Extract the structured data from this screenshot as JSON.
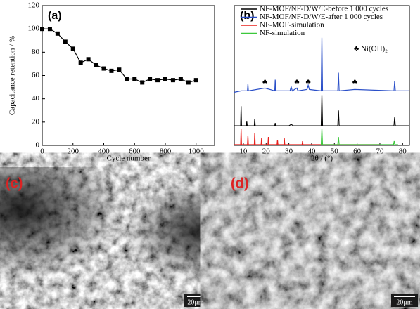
{
  "chart_data": [
    {
      "type": "line",
      "panel_label": "(a)",
      "x_label": "Cycle number",
      "y_label": "Capacitance retention / %",
      "marker": "square",
      "color": "#000000",
      "x": [
        0,
        50,
        100,
        150,
        200,
        250,
        300,
        350,
        400,
        450,
        500,
        550,
        600,
        650,
        700,
        750,
        800,
        850,
        900,
        950,
        1000
      ],
      "series": [
        {
          "color": "#000000",
          "values": [
            100,
            100,
            96,
            89,
            83,
            71,
            74,
            69,
            66,
            64,
            65,
            57,
            57,
            54,
            57,
            56,
            57,
            56,
            57,
            54,
            56
          ]
        }
      ],
      "xlim": [
        0,
        1120
      ],
      "xticks": [
        0,
        200,
        400,
        600,
        800,
        1000
      ],
      "ylim": [
        0,
        120
      ],
      "yticks": [
        0,
        20,
        40,
        60,
        80,
        100,
        120
      ]
    },
    {
      "type": "line",
      "panel_label": "(b)",
      "x_label": "2θ / (°)",
      "xlim": [
        6,
        83
      ],
      "xticks": [
        10,
        20,
        30,
        40,
        50,
        60,
        70,
        80
      ],
      "ylim": [
        0,
        100
      ],
      "annotation": "♣ Ni(OH)₂",
      "marker_symbol": "♣",
      "marker_x": [
        19.5,
        33.5,
        38.5,
        59
      ],
      "series": [
        {
          "name": "NF-MOF/NF-D/W/E-before 1 000 cycles",
          "color": "#000000",
          "x": [
            6,
            8.8,
            9,
            9.2,
            11.3,
            11.5,
            11.7,
            14.8,
            15,
            15.2,
            23.8,
            24,
            24.2,
            30,
            31,
            32,
            44.2,
            44.5,
            44.8,
            51.5,
            51.8,
            52.1,
            76.2,
            76.5,
            76.8,
            83
          ],
          "values": [
            14,
            14,
            28,
            14,
            14,
            17,
            14,
            14,
            19,
            14,
            14,
            16,
            14,
            14,
            15,
            14,
            14,
            36,
            14,
            14,
            25,
            14,
            14,
            20,
            14,
            14
          ]
        },
        {
          "name": "NF-MOF/NF-D/W/E-after 1 000 cycles",
          "color": "#2a4fc8",
          "x": [
            6,
            9,
            11.8,
            12,
            12.2,
            19.5,
            23.8,
            24,
            24.2,
            28,
            30.5,
            31,
            31.5,
            33.5,
            34,
            38,
            38.5,
            39,
            44.2,
            44.5,
            44.8,
            51.5,
            51.8,
            52.1,
            59,
            76.2,
            76.5,
            76.8,
            83
          ],
          "values": [
            38,
            39,
            39,
            44,
            39,
            41,
            39,
            47,
            39,
            39,
            39,
            42,
            39,
            41,
            39,
            40,
            43,
            40,
            39,
            77,
            39,
            39,
            52,
            39,
            40,
            39,
            46,
            39,
            39
          ]
        },
        {
          "name": "NF-MOF-simulation",
          "color": "#e8201c",
          "x": [
            6,
            8.8,
            9,
            9.2,
            11.8,
            12,
            12.2,
            14.8,
            15,
            15.2,
            17.8,
            18,
            18.2,
            20.8,
            21,
            21.2,
            24.8,
            25,
            25.2,
            27.8,
            28,
            28.2,
            35.8,
            36,
            36.2,
            46,
            70
          ],
          "values": [
            0.5,
            0.5,
            12,
            0.5,
            0.5,
            7,
            0.5,
            0.5,
            9,
            0.5,
            0.5,
            5,
            0.5,
            0.5,
            6,
            0.5,
            0.5,
            4,
            0.5,
            0.5,
            5,
            0.5,
            0.5,
            3,
            0.5,
            0.5,
            0.5
          ]
        },
        {
          "name": "NF-simulation",
          "color": "#3cc83c",
          "x": [
            44.2,
            44.5,
            44.8,
            51.5,
            51.8,
            52.1,
            76,
            76.3,
            76.6,
            78
          ],
          "values": [
            0.5,
            12,
            0.5,
            0.5,
            6,
            0.5,
            0.5,
            3,
            0.5,
            0.5
          ]
        }
      ]
    }
  ],
  "panels": [
    {
      "label": "(c)",
      "scale_bar": "20μm"
    },
    {
      "label": "(d)",
      "scale_bar": "20μm"
    }
  ]
}
